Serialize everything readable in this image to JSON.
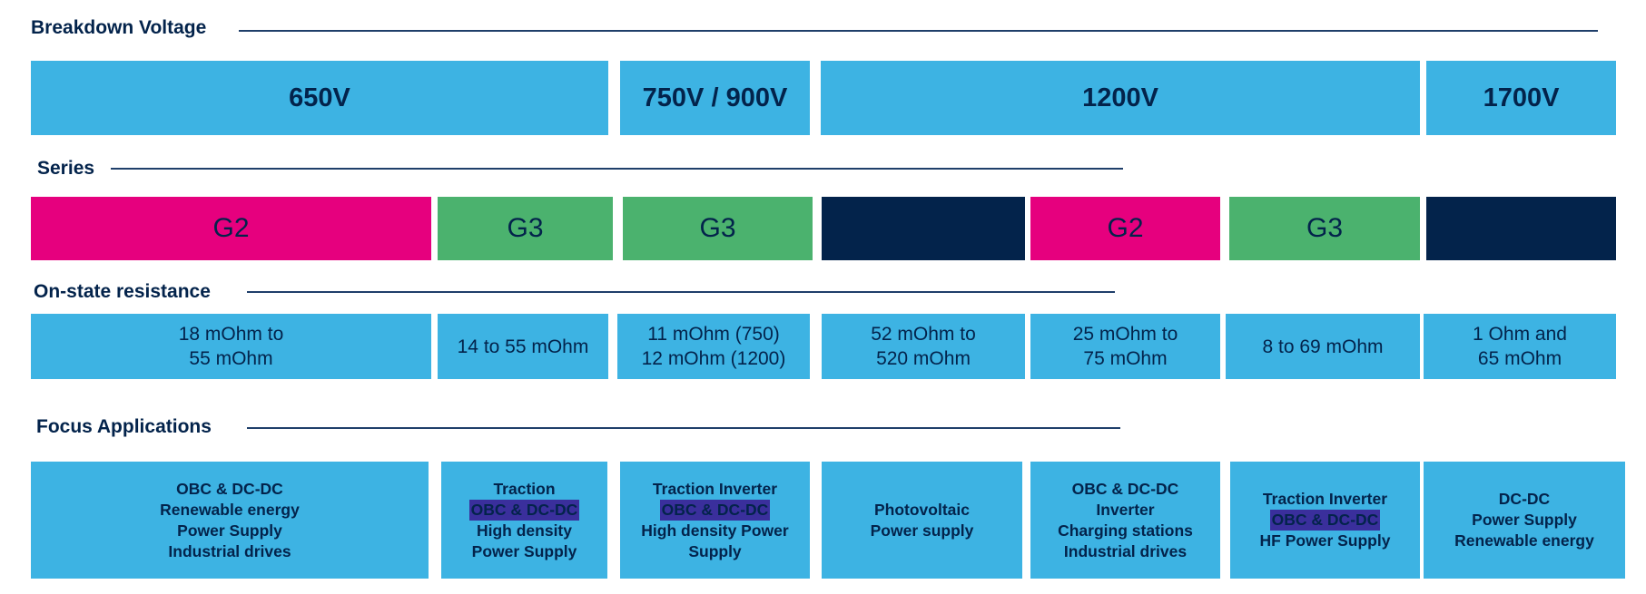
{
  "breakdown_voltage": {
    "title": "Breakdown Voltage",
    "color": "#3db3e3",
    "items": [
      "650V",
      "750V / 900V",
      "1200V",
      "1700V"
    ]
  },
  "series": {
    "title": "Series",
    "items": [
      {
        "label": "G2",
        "color": "#e6007e"
      },
      {
        "label": "G3",
        "color": "#4bb26e"
      },
      {
        "label": "G3",
        "color": "#4bb26e"
      },
      {
        "color": "#03234b"
      },
      {
        "label": "G2",
        "color": "#e6007e"
      },
      {
        "label": "G3",
        "color": "#4bb26e"
      },
      {
        "color": "#03234b"
      }
    ]
  },
  "on_state_resistance": {
    "title": "On-state resistance",
    "color": "#3db3e3",
    "items": [
      [
        "18 mOhm to",
        "55 mOhm"
      ],
      [
        "14 to 55 mOhm"
      ],
      [
        "11 mOhm (750)",
        "12 mOhm (1200)"
      ],
      [
        "52 mOhm to",
        "520 mOhm"
      ],
      [
        "25 mOhm to",
        "75 mOhm"
      ],
      [
        "8 to 69 mOhm"
      ],
      [
        "1 Ohm and",
        "65 mOhm"
      ]
    ]
  },
  "focus_applications": {
    "title": "Focus Applications",
    "color": "#3db3e3",
    "highlight_color": "#3a2f9c",
    "items": [
      {
        "lines": [
          "OBC & DC-DC",
          "Renewable energy",
          "Power Supply",
          "Industrial drives"
        ]
      },
      {
        "lines": [
          "Traction",
          "OBC & DC-DC",
          "High density",
          "Power Supply"
        ],
        "highlight": 1
      },
      {
        "lines": [
          "Traction Inverter",
          "OBC & DC-DC",
          "High density Power",
          "Supply"
        ],
        "highlight": 1
      },
      {
        "lines": [
          "Photovoltaic",
          "Power supply"
        ]
      },
      {
        "lines": [
          "OBC & DC-DC",
          "Inverter",
          "Charging stations",
          "Industrial drives"
        ]
      },
      {
        "lines": [
          "Traction Inverter",
          "OBC & DC-DC",
          "HF Power Supply"
        ],
        "highlight": 1
      },
      {
        "lines": [
          "DC-DC",
          "Power Supply",
          "Renewable energy"
        ]
      }
    ]
  }
}
